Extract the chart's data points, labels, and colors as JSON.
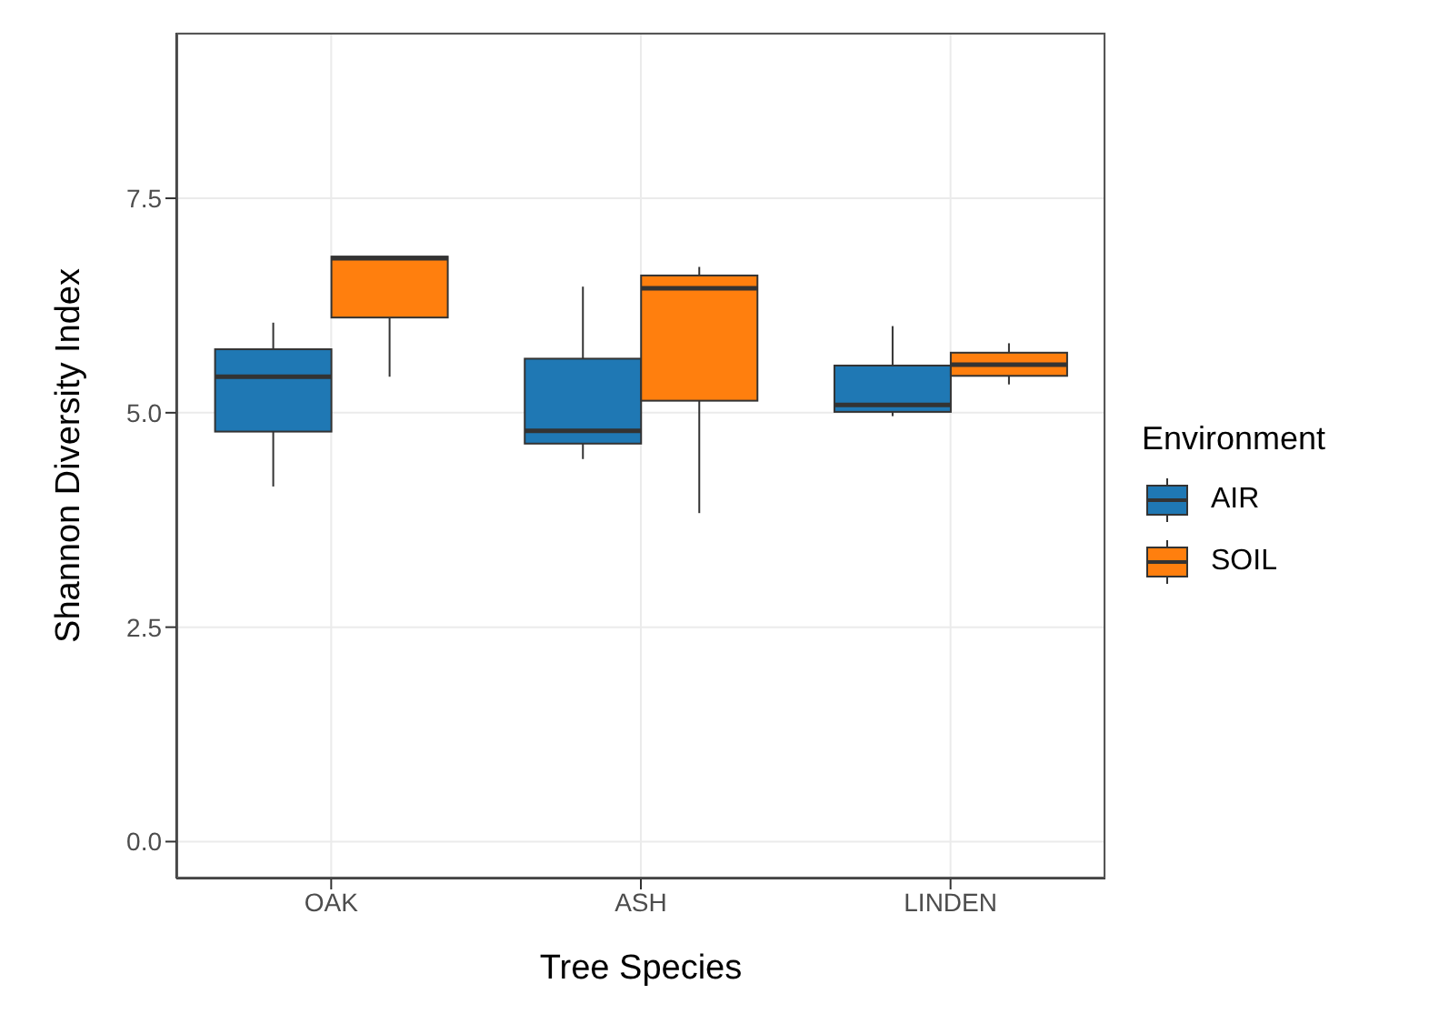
{
  "chart_data": {
    "type": "box",
    "xlabel": "Tree Species",
    "ylabel": "Shannon Diversity Index",
    "legend_title": "Environment",
    "categories": [
      "OAK",
      "ASH",
      "LINDEN"
    ],
    "series": [
      {
        "name": "AIR",
        "color": "#1f78b4",
        "boxes": [
          {
            "low": 4.14,
            "q1": 4.78,
            "median": 5.42,
            "q3": 5.74,
            "high": 6.05
          },
          {
            "low": 4.46,
            "q1": 4.64,
            "median": 4.79,
            "q3": 5.63,
            "high": 6.47
          },
          {
            "low": 4.96,
            "q1": 5.01,
            "median": 5.09,
            "q3": 5.55,
            "high": 6.01
          }
        ]
      },
      {
        "name": "SOIL",
        "color": "#ff7f0e",
        "boxes": [
          {
            "low": 5.42,
            "q1": 6.11,
            "median": 6.8,
            "q3": 6.82,
            "high": 6.82
          },
          {
            "low": 3.83,
            "q1": 5.14,
            "median": 6.45,
            "q3": 6.6,
            "high": 6.7
          },
          {
            "low": 5.33,
            "q1": 5.43,
            "median": 5.56,
            "q3": 5.7,
            "high": 5.81
          }
        ]
      }
    ],
    "ylim": [
      -0.43,
      9.43
    ],
    "yticks": [
      {
        "value": 0,
        "label": "0.0"
      },
      {
        "value": 2.5,
        "label": "2.5"
      },
      {
        "value": 5,
        "label": "5.0"
      },
      {
        "value": 7.5,
        "label": "7.5"
      }
    ],
    "grid": true,
    "legend": "right"
  }
}
